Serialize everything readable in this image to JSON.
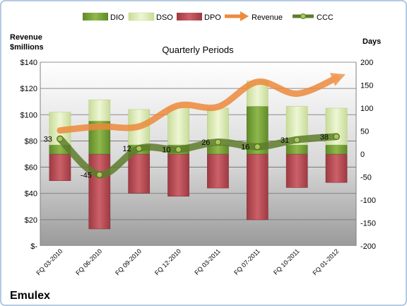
{
  "chart_data": {
    "type": "bar",
    "title": "Quarterly Periods",
    "company": "Emulex",
    "left_axis_title": [
      "Revenue",
      "$millions"
    ],
    "right_axis_title": "Days",
    "categories": [
      "FQ 03-2010",
      "FQ 06-2010",
      "FQ 09-2010",
      "FQ 12-2010",
      "FQ 03-2011",
      "FQ 07-2011",
      "FQ 10-2011",
      "FQ 01-2012"
    ],
    "left_axis": {
      "min": 0,
      "max": 140,
      "step": 20,
      "tick_labels": [
        "$-",
        "$20",
        "$40",
        "$60",
        "$80",
        "$100",
        "$120",
        "$140"
      ]
    },
    "right_axis": {
      "min": -200,
      "max": 200,
      "step": 50,
      "tick_labels": [
        "-200",
        "-150",
        "-100",
        "-50",
        "0",
        "50",
        "100",
        "150",
        "200"
      ]
    },
    "grid": true,
    "legend_position": "top",
    "legend": [
      {
        "name": "DIO",
        "kind": "bar",
        "color": "#7aa23c"
      },
      {
        "name": "DSO",
        "kind": "bar",
        "color": "#dfeeb8"
      },
      {
        "name": "DPO",
        "kind": "bar",
        "color": "#c05058"
      },
      {
        "name": "Revenue",
        "kind": "line",
        "color": "#ee8a3c"
      },
      {
        "name": "CCC",
        "kind": "line",
        "color": "#5e7d2c"
      }
    ],
    "series": [
      {
        "name": "DIO",
        "axis": "days",
        "values": [
          20,
          72,
          20,
          20,
          20,
          104,
          20,
          20
        ]
      },
      {
        "name": "DSO",
        "axis": "days",
        "values": [
          71,
          46,
          77,
          82,
          80,
          55,
          84,
          80
        ]
      },
      {
        "name": "DPO",
        "axis": "days",
        "values": [
          -58,
          -163,
          -85,
          -92,
          -74,
          -143,
          -73,
          -62
        ]
      },
      {
        "name": "Revenue",
        "axis": "revenue",
        "values": [
          88,
          91,
          91,
          107,
          106,
          125,
          116,
          128
        ]
      },
      {
        "name": "CCC",
        "axis": "days",
        "values": [
          33,
          -45,
          12,
          10,
          26,
          16,
          31,
          38
        ]
      }
    ],
    "ccc_labels": [
      "33",
      "-45",
      "12",
      "10",
      "26",
      "16",
      "31",
      "38"
    ],
    "colors": {
      "plot_top": "#ffffff",
      "plot_bottom": "#9a9a9a",
      "grid": "#6e6e6e",
      "dio": "#7aa23c",
      "dso": "#dfeeb8",
      "dpo": "#c05058",
      "revenue": "#ee8a3c",
      "ccc": "#5e7d2c",
      "border": "#9db8d8"
    }
  }
}
